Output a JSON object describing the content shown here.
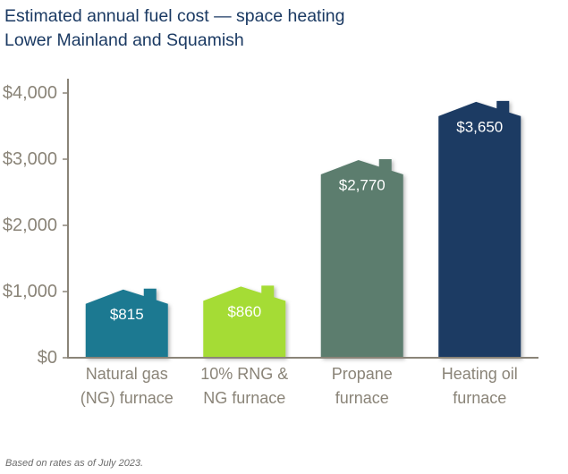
{
  "chart_data": {
    "type": "bar",
    "title": "Estimated annual fuel cost — space heating",
    "subtitle": "Lower Mainland and Squamish",
    "categories": [
      [
        "Natural gas",
        "(NG) furnace"
      ],
      [
        "10% RNG &",
        "NG furnace"
      ],
      [
        "Propane",
        "furnace"
      ],
      [
        "Heating oil",
        "furnace"
      ]
    ],
    "values": [
      815,
      860,
      2770,
      3650
    ],
    "data_labels": [
      "$815",
      "$860",
      "$2,770",
      "$3,650"
    ],
    "colors": [
      "#1a7991",
      "#a5dc35",
      "#5b7d6e",
      "#1b3a63"
    ],
    "ylim": [
      0,
      4000
    ],
    "yticks": [
      0,
      1000,
      2000,
      3000,
      4000
    ],
    "ytick_labels": [
      "$0",
      "$1,000",
      "$2,000",
      "$3,000",
      "$4,000"
    ],
    "xlabel": "",
    "ylabel": "",
    "grid": false,
    "bar_shape": "house"
  },
  "footnote": "Based on rates as of July 2023."
}
